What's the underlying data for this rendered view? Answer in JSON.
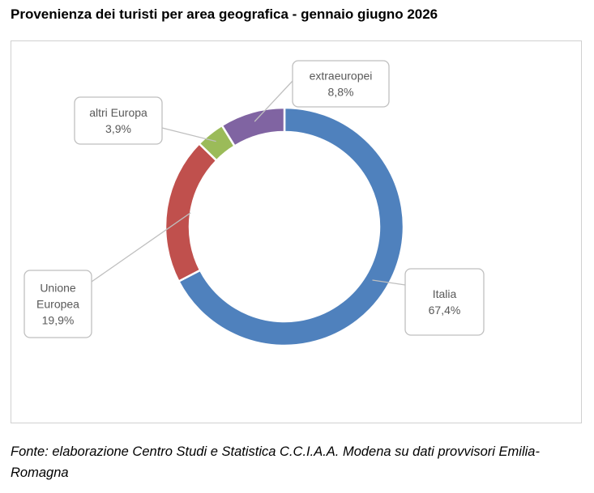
{
  "title": "Provenienza dei turisti per area geografica - gennaio giugno 2026",
  "source": "Fonte: elaborazione Centro Studi e Statistica C.C.I.A.A. Modena su dati provvisori Emilia-Romagna",
  "chart_data": {
    "type": "pie",
    "subtype": "doughnut",
    "title": "Provenienza dei turisti per area geografica - gennaio giugno 2026",
    "categories": [
      "Italia",
      "Unione Europea",
      "altri Europa",
      "extraeuropei"
    ],
    "values": [
      67.4,
      19.9,
      3.9,
      8.8
    ],
    "value_labels": [
      "67,4%",
      "19,9%",
      "3,9%",
      "8,8%"
    ],
    "label_lines": [
      [
        "Italia"
      ],
      [
        "Unione",
        "Europea"
      ],
      [
        "altri Europa"
      ],
      [
        "extraeuropei"
      ]
    ],
    "colors": [
      "#4f81bd",
      "#c0504d",
      "#9bbb59",
      "#8064a2"
    ],
    "legend": "none"
  }
}
